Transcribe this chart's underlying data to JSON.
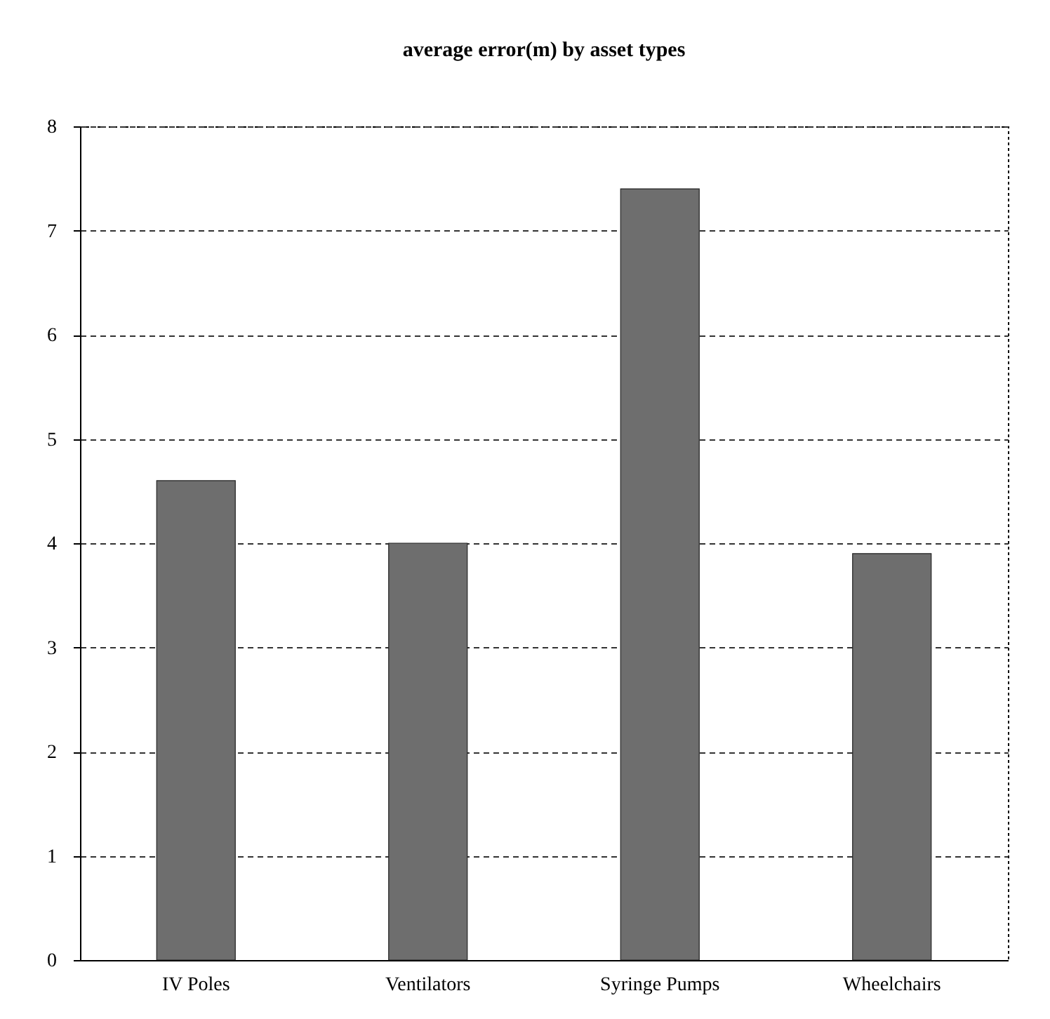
{
  "chart_data": {
    "type": "bar",
    "title": "average error(m) by asset types",
    "categories": [
      "IV Poles",
      "Ventilators",
      "Syringe Pumps",
      "Wheelchairs"
    ],
    "values": [
      4.6,
      4.0,
      7.4,
      3.9
    ],
    "color": "#6e6e6e",
    "ylim": [
      0,
      8
    ],
    "yticks": [
      0,
      1,
      2,
      3,
      4,
      5,
      6,
      7,
      8
    ],
    "grid": "y"
  }
}
